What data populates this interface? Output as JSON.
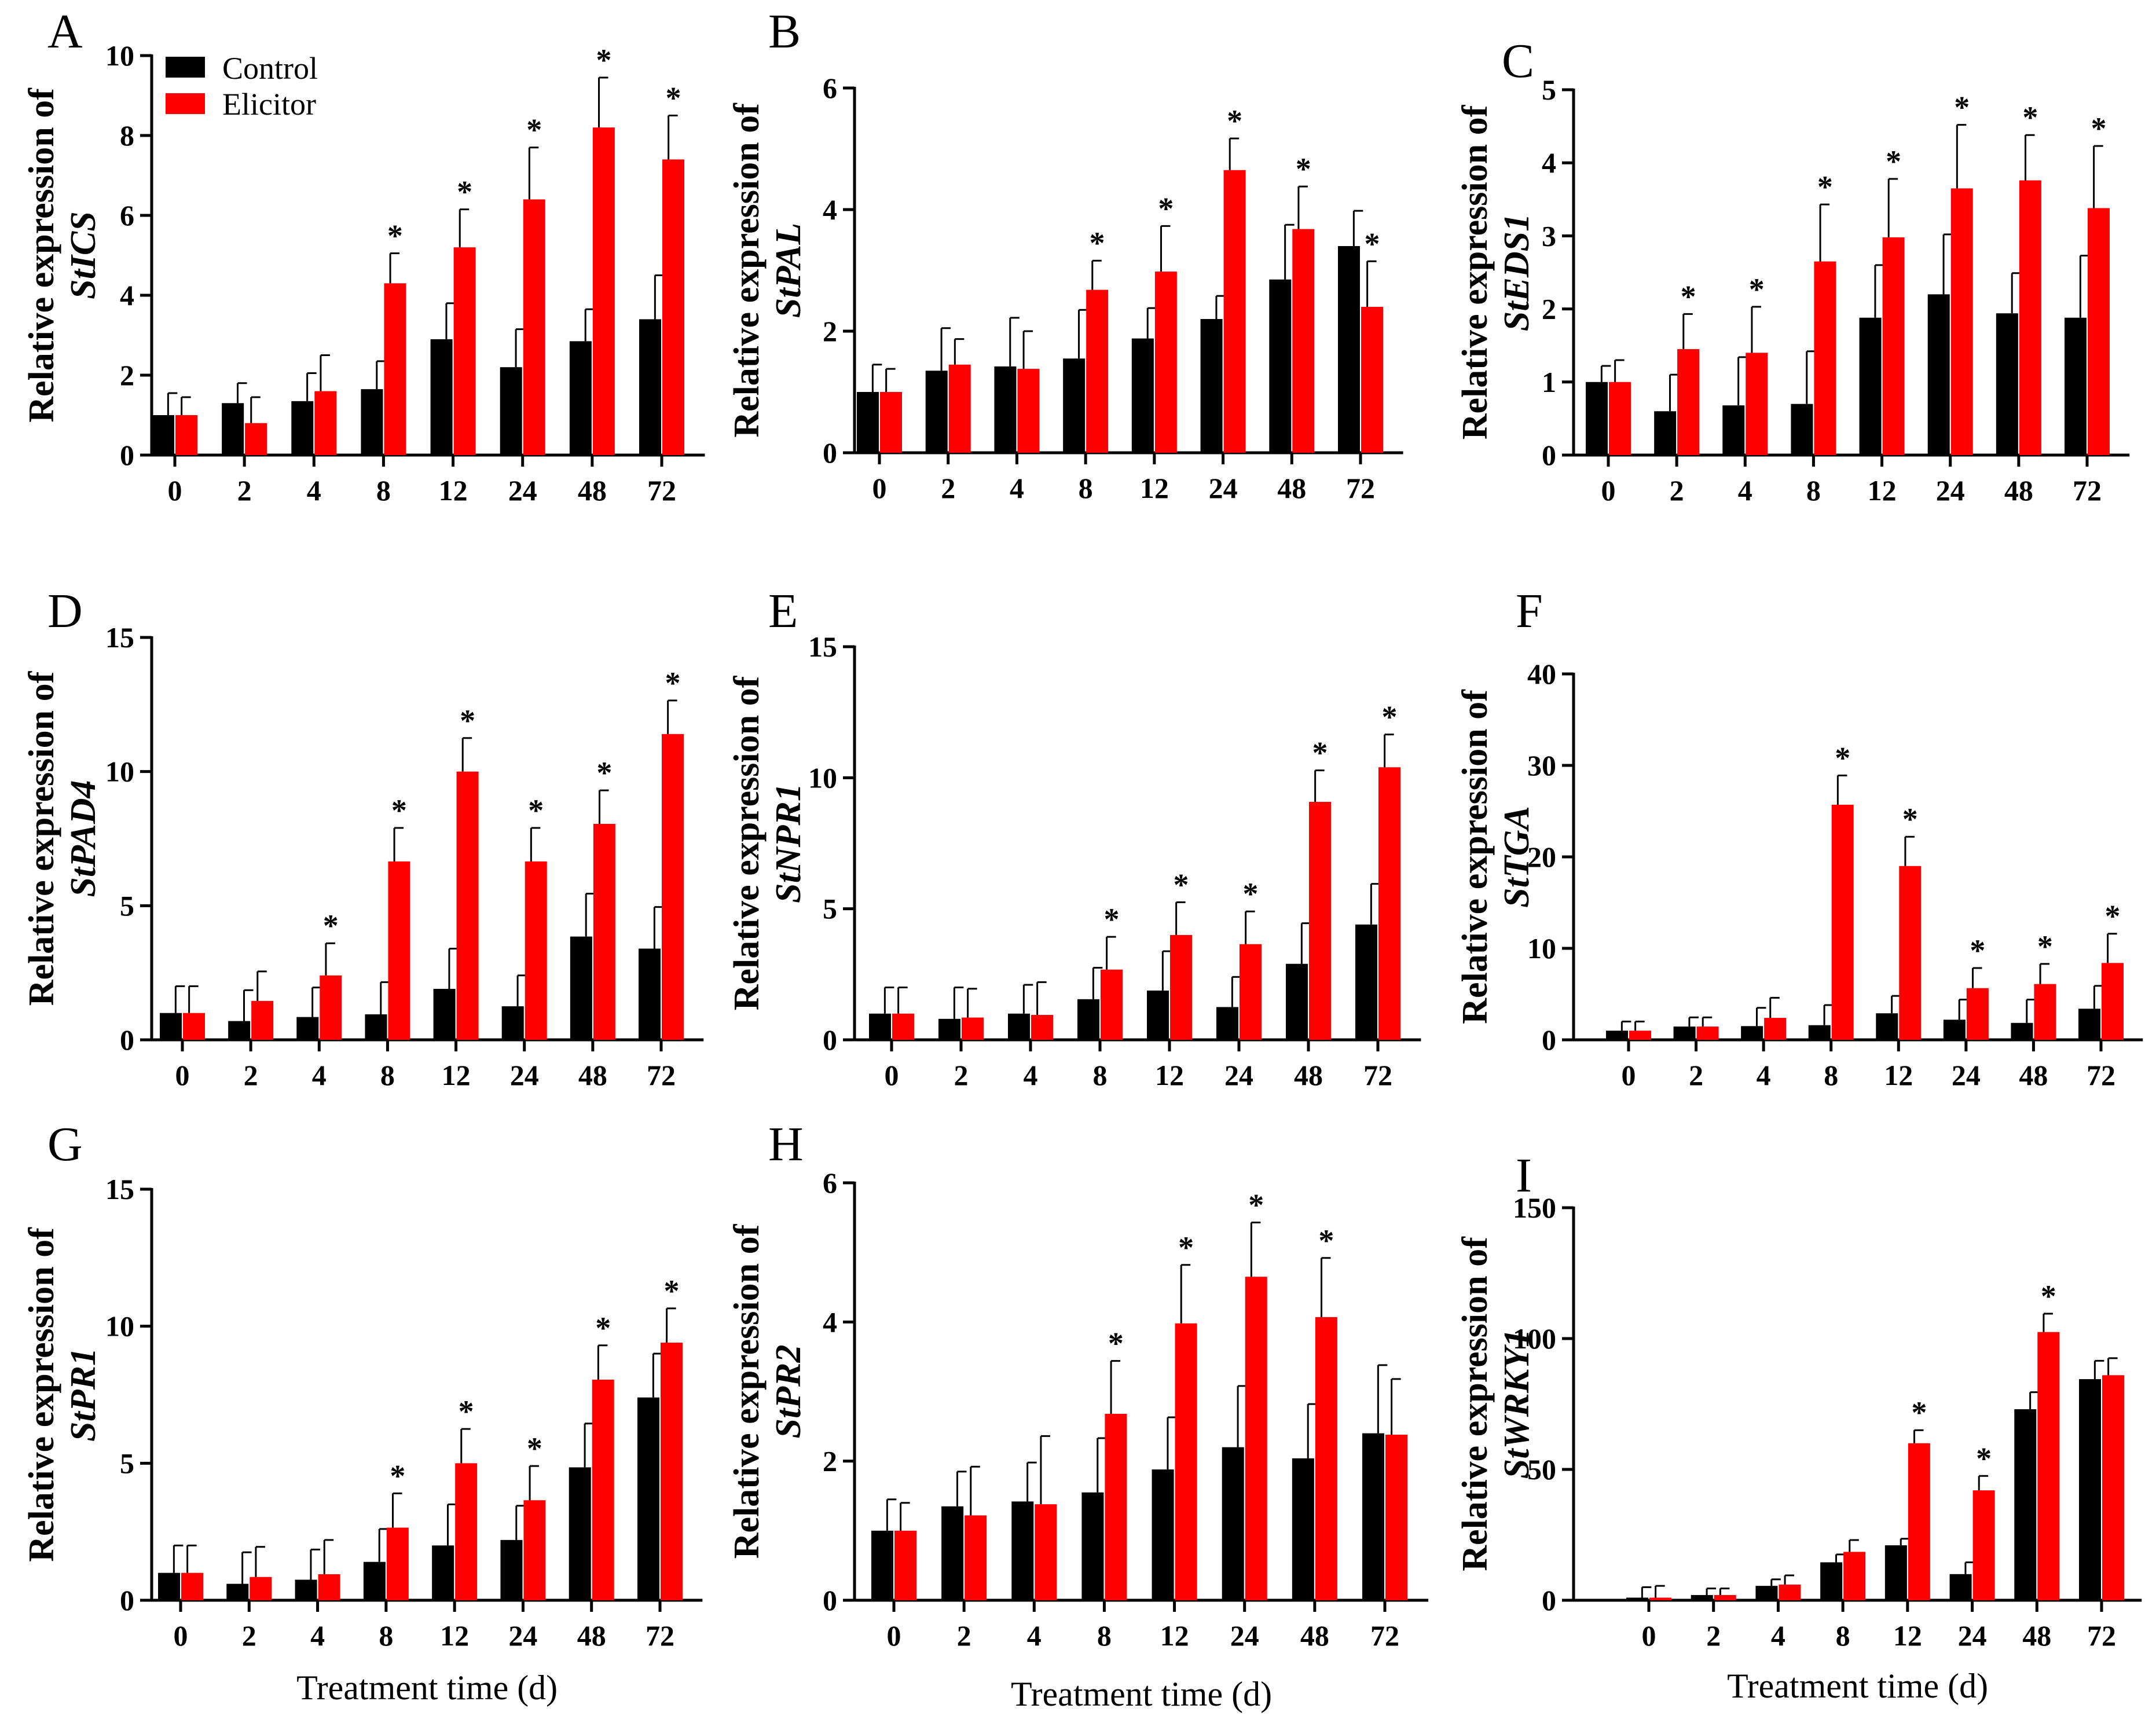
{
  "x_label": "Treatment time (d)",
  "legend": {
    "control": "Control",
    "elicitor": "Elicitor",
    "control_color": "#000000",
    "elicitor_color": "#ff0000"
  },
  "significance_mark": "*",
  "chart_data": [
    {
      "type": "bar",
      "panel": "A",
      "ylabel_prefix": "Relative expression of",
      "gene": "StICS",
      "categories": [
        "0",
        "2",
        "4",
        "8",
        "12",
        "24",
        "48",
        "72"
      ],
      "ylim": [
        0,
        10
      ],
      "yticks": [
        0,
        2,
        4,
        6,
        8,
        10
      ],
      "series": [
        {
          "name": "Control",
          "values": [
            1.0,
            1.3,
            1.35,
            1.65,
            2.9,
            2.2,
            2.85,
            3.4
          ],
          "errors": [
            0.55,
            0.5,
            0.7,
            0.7,
            0.9,
            0.95,
            0.8,
            1.1
          ]
        },
        {
          "name": "Elicitor",
          "values": [
            1.0,
            0.8,
            1.6,
            4.3,
            5.2,
            6.4,
            8.2,
            7.4
          ],
          "errors": [
            0.45,
            0.65,
            0.9,
            0.75,
            0.95,
            1.3,
            1.25,
            1.1
          ]
        }
      ],
      "significant": [
        false,
        false,
        false,
        true,
        true,
        true,
        true,
        true
      ],
      "legend_position": "top-left"
    },
    {
      "type": "bar",
      "panel": "B",
      "ylabel_prefix": "Relative expression of",
      "gene": "StPAL",
      "categories": [
        "0",
        "2",
        "4",
        "8",
        "12",
        "24",
        "48",
        "72"
      ],
      "ylim": [
        0,
        6
      ],
      "yticks": [
        0,
        2,
        4,
        6
      ],
      "series": [
        {
          "name": "Control",
          "values": [
            1.0,
            1.35,
            1.42,
            1.55,
            1.88,
            2.2,
            2.85,
            3.4
          ],
          "errors": [
            0.45,
            0.7,
            0.8,
            0.8,
            0.5,
            0.38,
            0.9,
            0.58
          ]
        },
        {
          "name": "Elicitor",
          "values": [
            1.0,
            1.45,
            1.38,
            2.68,
            2.98,
            4.65,
            3.68,
            2.4
          ],
          "errors": [
            0.38,
            0.42,
            0.62,
            0.48,
            0.75,
            0.52,
            0.7,
            0.75
          ]
        }
      ],
      "significant": [
        false,
        false,
        false,
        true,
        true,
        true,
        true,
        true
      ]
    },
    {
      "type": "bar",
      "panel": "C",
      "ylabel_prefix": "Relative expression of",
      "gene": "StEDS1",
      "categories": [
        "0",
        "2",
        "4",
        "8",
        "12",
        "24",
        "48",
        "72"
      ],
      "ylim": [
        0,
        5
      ],
      "yticks": [
        0,
        1,
        2,
        3,
        4,
        5
      ],
      "series": [
        {
          "name": "Control",
          "values": [
            1.0,
            0.6,
            0.68,
            0.7,
            1.88,
            2.2,
            1.94,
            1.88
          ],
          "errors": [
            0.22,
            0.5,
            0.66,
            0.72,
            0.72,
            0.82,
            0.55,
            0.85
          ]
        },
        {
          "name": "Elicitor",
          "values": [
            1.0,
            1.45,
            1.4,
            2.65,
            2.98,
            3.65,
            3.76,
            3.38
          ],
          "errors": [
            0.3,
            0.48,
            0.63,
            0.78,
            0.8,
            0.87,
            0.62,
            0.85
          ]
        }
      ],
      "significant": [
        false,
        true,
        true,
        true,
        true,
        true,
        true,
        true
      ]
    },
    {
      "type": "bar",
      "panel": "D",
      "ylabel_prefix": "Relative expression of",
      "gene": "StPAD4",
      "categories": [
        "0",
        "2",
        "4",
        "8",
        "12",
        "24",
        "48",
        "72"
      ],
      "ylim": [
        0,
        15
      ],
      "yticks": [
        0,
        5,
        10,
        15
      ],
      "series": [
        {
          "name": "Control",
          "values": [
            1.0,
            0.7,
            0.85,
            0.95,
            1.9,
            1.25,
            3.85,
            3.4
          ],
          "errors": [
            1.0,
            1.15,
            1.1,
            1.2,
            1.5,
            1.15,
            1.6,
            1.55
          ]
        },
        {
          "name": "Elicitor",
          "values": [
            1.0,
            1.45,
            2.4,
            6.65,
            10.0,
            6.65,
            8.05,
            11.4
          ],
          "errors": [
            1.0,
            1.1,
            1.2,
            1.25,
            1.25,
            1.25,
            1.25,
            1.25
          ]
        }
      ],
      "significant": [
        false,
        false,
        true,
        true,
        true,
        true,
        true,
        true
      ]
    },
    {
      "type": "bar",
      "panel": "E",
      "ylabel_prefix": "Relative expression of",
      "gene": "StNPR1",
      "categories": [
        "0",
        "2",
        "4",
        "8",
        "12",
        "24",
        "48",
        "72"
      ],
      "ylim": [
        0,
        15
      ],
      "yticks": [
        0,
        5,
        10,
        15
      ],
      "series": [
        {
          "name": "Control",
          "values": [
            1.0,
            0.8,
            1.0,
            1.55,
            1.88,
            1.25,
            2.9,
            4.4
          ],
          "errors": [
            1.0,
            1.2,
            1.1,
            1.2,
            1.5,
            1.15,
            1.55,
            1.55
          ]
        },
        {
          "name": "Elicitor",
          "values": [
            1.0,
            0.85,
            0.95,
            2.68,
            4.0,
            3.65,
            9.08,
            10.4
          ],
          "errors": [
            1.0,
            1.1,
            1.25,
            1.25,
            1.25,
            1.25,
            1.2,
            1.25
          ]
        }
      ],
      "significant": [
        false,
        false,
        false,
        true,
        true,
        true,
        true,
        true
      ]
    },
    {
      "type": "bar",
      "panel": "F",
      "ylabel_prefix": "Relative expression of",
      "gene": "StTGA",
      "categories": [
        "0",
        "2",
        "4",
        "8",
        "12",
        "24",
        "48",
        "72"
      ],
      "ylim": [
        0,
        40
      ],
      "yticks": [
        0,
        10,
        20,
        30,
        40
      ],
      "series": [
        {
          "name": "Control",
          "values": [
            1.0,
            1.45,
            1.5,
            1.6,
            2.9,
            2.2,
            1.85,
            3.4
          ],
          "errors": [
            1.0,
            1.0,
            2.0,
            2.2,
            1.9,
            2.2,
            2.55,
            2.5
          ]
        },
        {
          "name": "Elicitor",
          "values": [
            1.0,
            1.45,
            2.4,
            25.7,
            19.0,
            5.65,
            6.1,
            8.4
          ],
          "errors": [
            1.0,
            1.0,
            2.2,
            3.2,
            3.2,
            2.2,
            2.2,
            3.2
          ]
        }
      ],
      "significant": [
        false,
        false,
        false,
        true,
        true,
        true,
        true,
        true
      ]
    },
    {
      "type": "bar",
      "panel": "G",
      "ylabel_prefix": "Relative expression of",
      "gene": "StPR1",
      "categories": [
        "0",
        "2",
        "4",
        "8",
        "12",
        "24",
        "48",
        "72"
      ],
      "ylim": [
        0,
        15
      ],
      "yticks": [
        0,
        5,
        10,
        15
      ],
      "series": [
        {
          "name": "Control",
          "values": [
            1.0,
            0.6,
            0.75,
            1.4,
            2.0,
            2.2,
            4.85,
            7.4
          ],
          "errors": [
            1.0,
            1.15,
            1.1,
            1.2,
            1.5,
            1.25,
            1.6,
            1.6
          ]
        },
        {
          "name": "Elicitor",
          "values": [
            1.0,
            0.85,
            0.95,
            2.65,
            5.0,
            3.65,
            8.05,
            9.4
          ],
          "errors": [
            1.0,
            1.1,
            1.25,
            1.25,
            1.25,
            1.25,
            1.25,
            1.25
          ]
        }
      ],
      "significant": [
        false,
        false,
        false,
        true,
        true,
        true,
        true,
        true
      ]
    },
    {
      "type": "bar",
      "panel": "H",
      "ylabel_prefix": "Relative expression of",
      "gene": "StPR2",
      "categories": [
        "0",
        "2",
        "4",
        "8",
        "12",
        "24",
        "48",
        "72"
      ],
      "ylim": [
        0,
        6
      ],
      "yticks": [
        0,
        2,
        4,
        6
      ],
      "series": [
        {
          "name": "Control",
          "values": [
            1.0,
            1.35,
            1.42,
            1.55,
            1.88,
            2.2,
            2.04,
            2.4
          ],
          "errors": [
            0.45,
            0.5,
            0.56,
            0.78,
            0.75,
            0.88,
            0.78,
            0.98
          ]
        },
        {
          "name": "Elicitor",
          "values": [
            1.0,
            1.22,
            1.38,
            2.68,
            3.98,
            4.65,
            4.07,
            2.38
          ],
          "errors": [
            0.4,
            0.7,
            0.98,
            0.76,
            0.84,
            0.78,
            0.85,
            0.8
          ]
        }
      ],
      "significant": [
        false,
        false,
        false,
        true,
        true,
        true,
        true,
        false
      ]
    },
    {
      "type": "bar",
      "panel": "I",
      "ylabel_prefix": "Relative expression of",
      "gene": "StWRKY1",
      "categories": [
        "0",
        "2",
        "4",
        "8",
        "12",
        "24",
        "48",
        "72"
      ],
      "ylim": [
        0,
        150
      ],
      "yticks": [
        0,
        50,
        100,
        150
      ],
      "series": [
        {
          "name": "Control",
          "values": [
            1.0,
            2.0,
            5.5,
            14.5,
            21.0,
            10.0,
            73.0,
            84.5
          ],
          "errors": [
            4.0,
            2.5,
            2.5,
            3.0,
            2.5,
            4.5,
            6.5,
            7.0
          ]
        },
        {
          "name": "Elicitor",
          "values": [
            1.0,
            2.0,
            6.0,
            18.5,
            60.0,
            42.0,
            102.5,
            86.0
          ],
          "errors": [
            4.5,
            2.5,
            3.5,
            4.5,
            5.0,
            5.5,
            7.0,
            6.5
          ]
        }
      ],
      "significant": [
        false,
        false,
        false,
        false,
        true,
        true,
        true,
        false
      ]
    }
  ]
}
